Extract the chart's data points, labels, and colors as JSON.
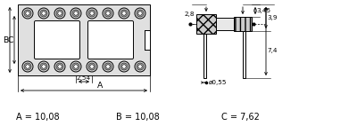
{
  "bg_color": "#ffffff",
  "fig_width": 4.0,
  "fig_height": 1.42,
  "dpi": 100,
  "label_A": "A = 10,08",
  "label_B": "B = 10,08",
  "label_C": "C = 7,62",
  "label_fontsize": 7.0,
  "dim_fontsize": 5.2,
  "draw_color": "#000000",
  "fill_color": "#cccccc",
  "circle_outer_fill": "#d8d8d8",
  "body_fill": "#e0e0e0"
}
